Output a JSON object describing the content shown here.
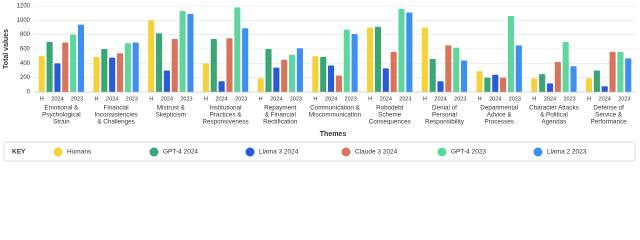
{
  "chart_data": {
    "type": "bar",
    "ylabel": "Total values",
    "xlabel": "Themes",
    "legend_title": "KEY",
    "subcategories": [
      "H",
      "2024",
      "2023"
    ],
    "categories": [
      [
        "Emotional &",
        "Psychological",
        "Strain"
      ],
      [
        "Financial",
        "Inconsistencies",
        "& Challenges"
      ],
      [
        "Mistrust &",
        "Skepticism"
      ],
      [
        "Institutional",
        "Practices &",
        "Responsiveness"
      ],
      [
        "Repayment",
        "& Financial",
        "Rectification"
      ],
      [
        "Communication &",
        "Miscommunication"
      ],
      [
        "Robodebt",
        "Scheme",
        "Consequences"
      ],
      [
        "Denial of",
        "Personal",
        "Responsibility"
      ],
      [
        "Departmental",
        "Advice &",
        "Processes"
      ],
      [
        "Character Attacks",
        "& Political",
        "Agendas"
      ],
      [
        "Defense of",
        "Service &",
        "Performance"
      ]
    ],
    "series": [
      {
        "name": "Humans",
        "color": "#f4d23c",
        "values": [
          500,
          490,
          1000,
          400,
          190,
          500,
          900,
          900,
          290,
          190,
          190
        ]
      },
      {
        "name": "GPT-4 2024",
        "color": "#3aa676",
        "values": [
          700,
          600,
          820,
          740,
          600,
          490,
          910,
          460,
          200,
          250,
          300
        ]
      },
      {
        "name": "Llama 3 2024",
        "color": "#2a5bd7",
        "values": [
          400,
          480,
          300,
          150,
          340,
          370,
          330,
          150,
          240,
          120,
          80
        ]
      },
      {
        "name": "Claude 3 2024",
        "color": "#d8735c",
        "values": [
          690,
          540,
          740,
          750,
          450,
          230,
          560,
          650,
          200,
          420,
          560
        ]
      },
      {
        "name": "GPT-4 2023",
        "color": "#5fd6a0",
        "values": [
          800,
          680,
          1130,
          1180,
          520,
          870,
          1160,
          620,
          1060,
          700,
          560
        ]
      },
      {
        "name": "Llama 2 2023",
        "color": "#3d8ff0",
        "values": [
          940,
          690,
          1090,
          890,
          610,
          810,
          1110,
          440,
          650,
          360,
          470
        ]
      }
    ],
    "ylim": [
      0,
      1200
    ],
    "yticks": [
      0,
      200,
      400,
      600,
      800,
      1000,
      1200
    ],
    "grid": true
  }
}
